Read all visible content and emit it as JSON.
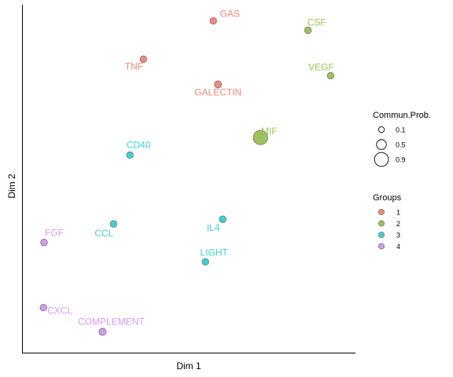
{
  "chart_data": {
    "type": "scatter",
    "xlabel": "Dim 1",
    "ylabel": "Dim 2",
    "xlim": [
      0,
      100
    ],
    "ylim": [
      0,
      100
    ],
    "grid": false,
    "legend_position": "right",
    "size_legend": {
      "title": "Commun.Prob.",
      "levels": [
        {
          "label": "0.1",
          "value": 0.1
        },
        {
          "label": "0.5",
          "value": 0.5
        },
        {
          "label": "0.9",
          "value": 0.9
        }
      ]
    },
    "color_legend": {
      "title": "Groups",
      "groups": [
        {
          "label": "1",
          "color": "#f08a80"
        },
        {
          "label": "2",
          "color": "#9fc35a"
        },
        {
          "label": "3",
          "color": "#3fd1d4"
        },
        {
          "label": "4",
          "color": "#d59bea"
        }
      ]
    },
    "points": [
      {
        "label": "GAS",
        "x": 57.8,
        "y": 96.6,
        "group": "1",
        "size": 0.2
      },
      {
        "label": "TNF",
        "x": 35.6,
        "y": 85.2,
        "group": "1",
        "size": 0.2
      },
      {
        "label": "GALECTIN",
        "x": 59.3,
        "y": 77.7,
        "group": "1",
        "size": 0.25
      },
      {
        "label": "CSF",
        "x": 87.9,
        "y": 93.8,
        "group": "2",
        "size": 0.2
      },
      {
        "label": "VEGF",
        "x": 95.1,
        "y": 80.3,
        "group": "2",
        "size": 0.2
      },
      {
        "label": "MIF",
        "x": 72.8,
        "y": 61.9,
        "group": "2",
        "size": 0.95
      },
      {
        "label": "CD40",
        "x": 31.3,
        "y": 56.7,
        "group": "3",
        "size": 0.2
      },
      {
        "label": "CCL",
        "x": 26.1,
        "y": 36.2,
        "group": "3",
        "size": 0.2
      },
      {
        "label": "IL4",
        "x": 60.8,
        "y": 37.6,
        "group": "3",
        "size": 0.2
      },
      {
        "label": "LIGHT",
        "x": 55.3,
        "y": 24.9,
        "group": "3",
        "size": 0.2
      },
      {
        "label": "FGF",
        "x": 4.0,
        "y": 30.7,
        "group": "4",
        "size": 0.2
      },
      {
        "label": "CXCL",
        "x": 3.8,
        "y": 11.3,
        "group": "4",
        "size": 0.2
      },
      {
        "label": "COMPLEMENT",
        "x": 22.6,
        "y": 4.1,
        "group": "4",
        "size": 0.25
      }
    ]
  }
}
